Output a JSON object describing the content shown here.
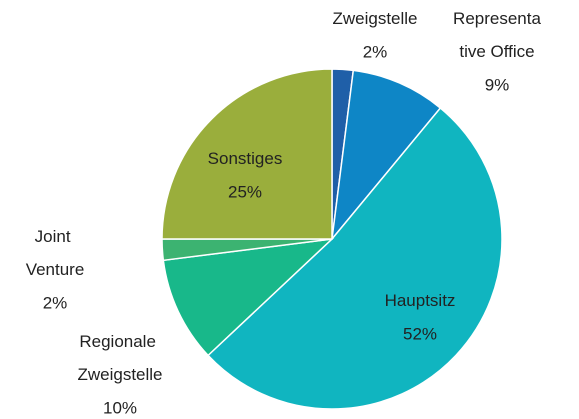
{
  "chart_data": {
    "type": "pie",
    "categories": [
      "Zweigstelle",
      "Representative Office",
      "Hauptsitz",
      "Regionale Zweigstelle",
      "Joint Venture",
      "Sonstiges"
    ],
    "values": [
      2,
      9,
      52,
      10,
      2,
      25
    ],
    "value_labels": [
      "2%",
      "9%",
      "52%",
      "10%",
      "2%",
      "25%"
    ],
    "colors": [
      "#1f5fa8",
      "#0e86c6",
      "#10b5c0",
      "#18b88a",
      "#3cb371",
      "#9aae3c"
    ]
  }
}
